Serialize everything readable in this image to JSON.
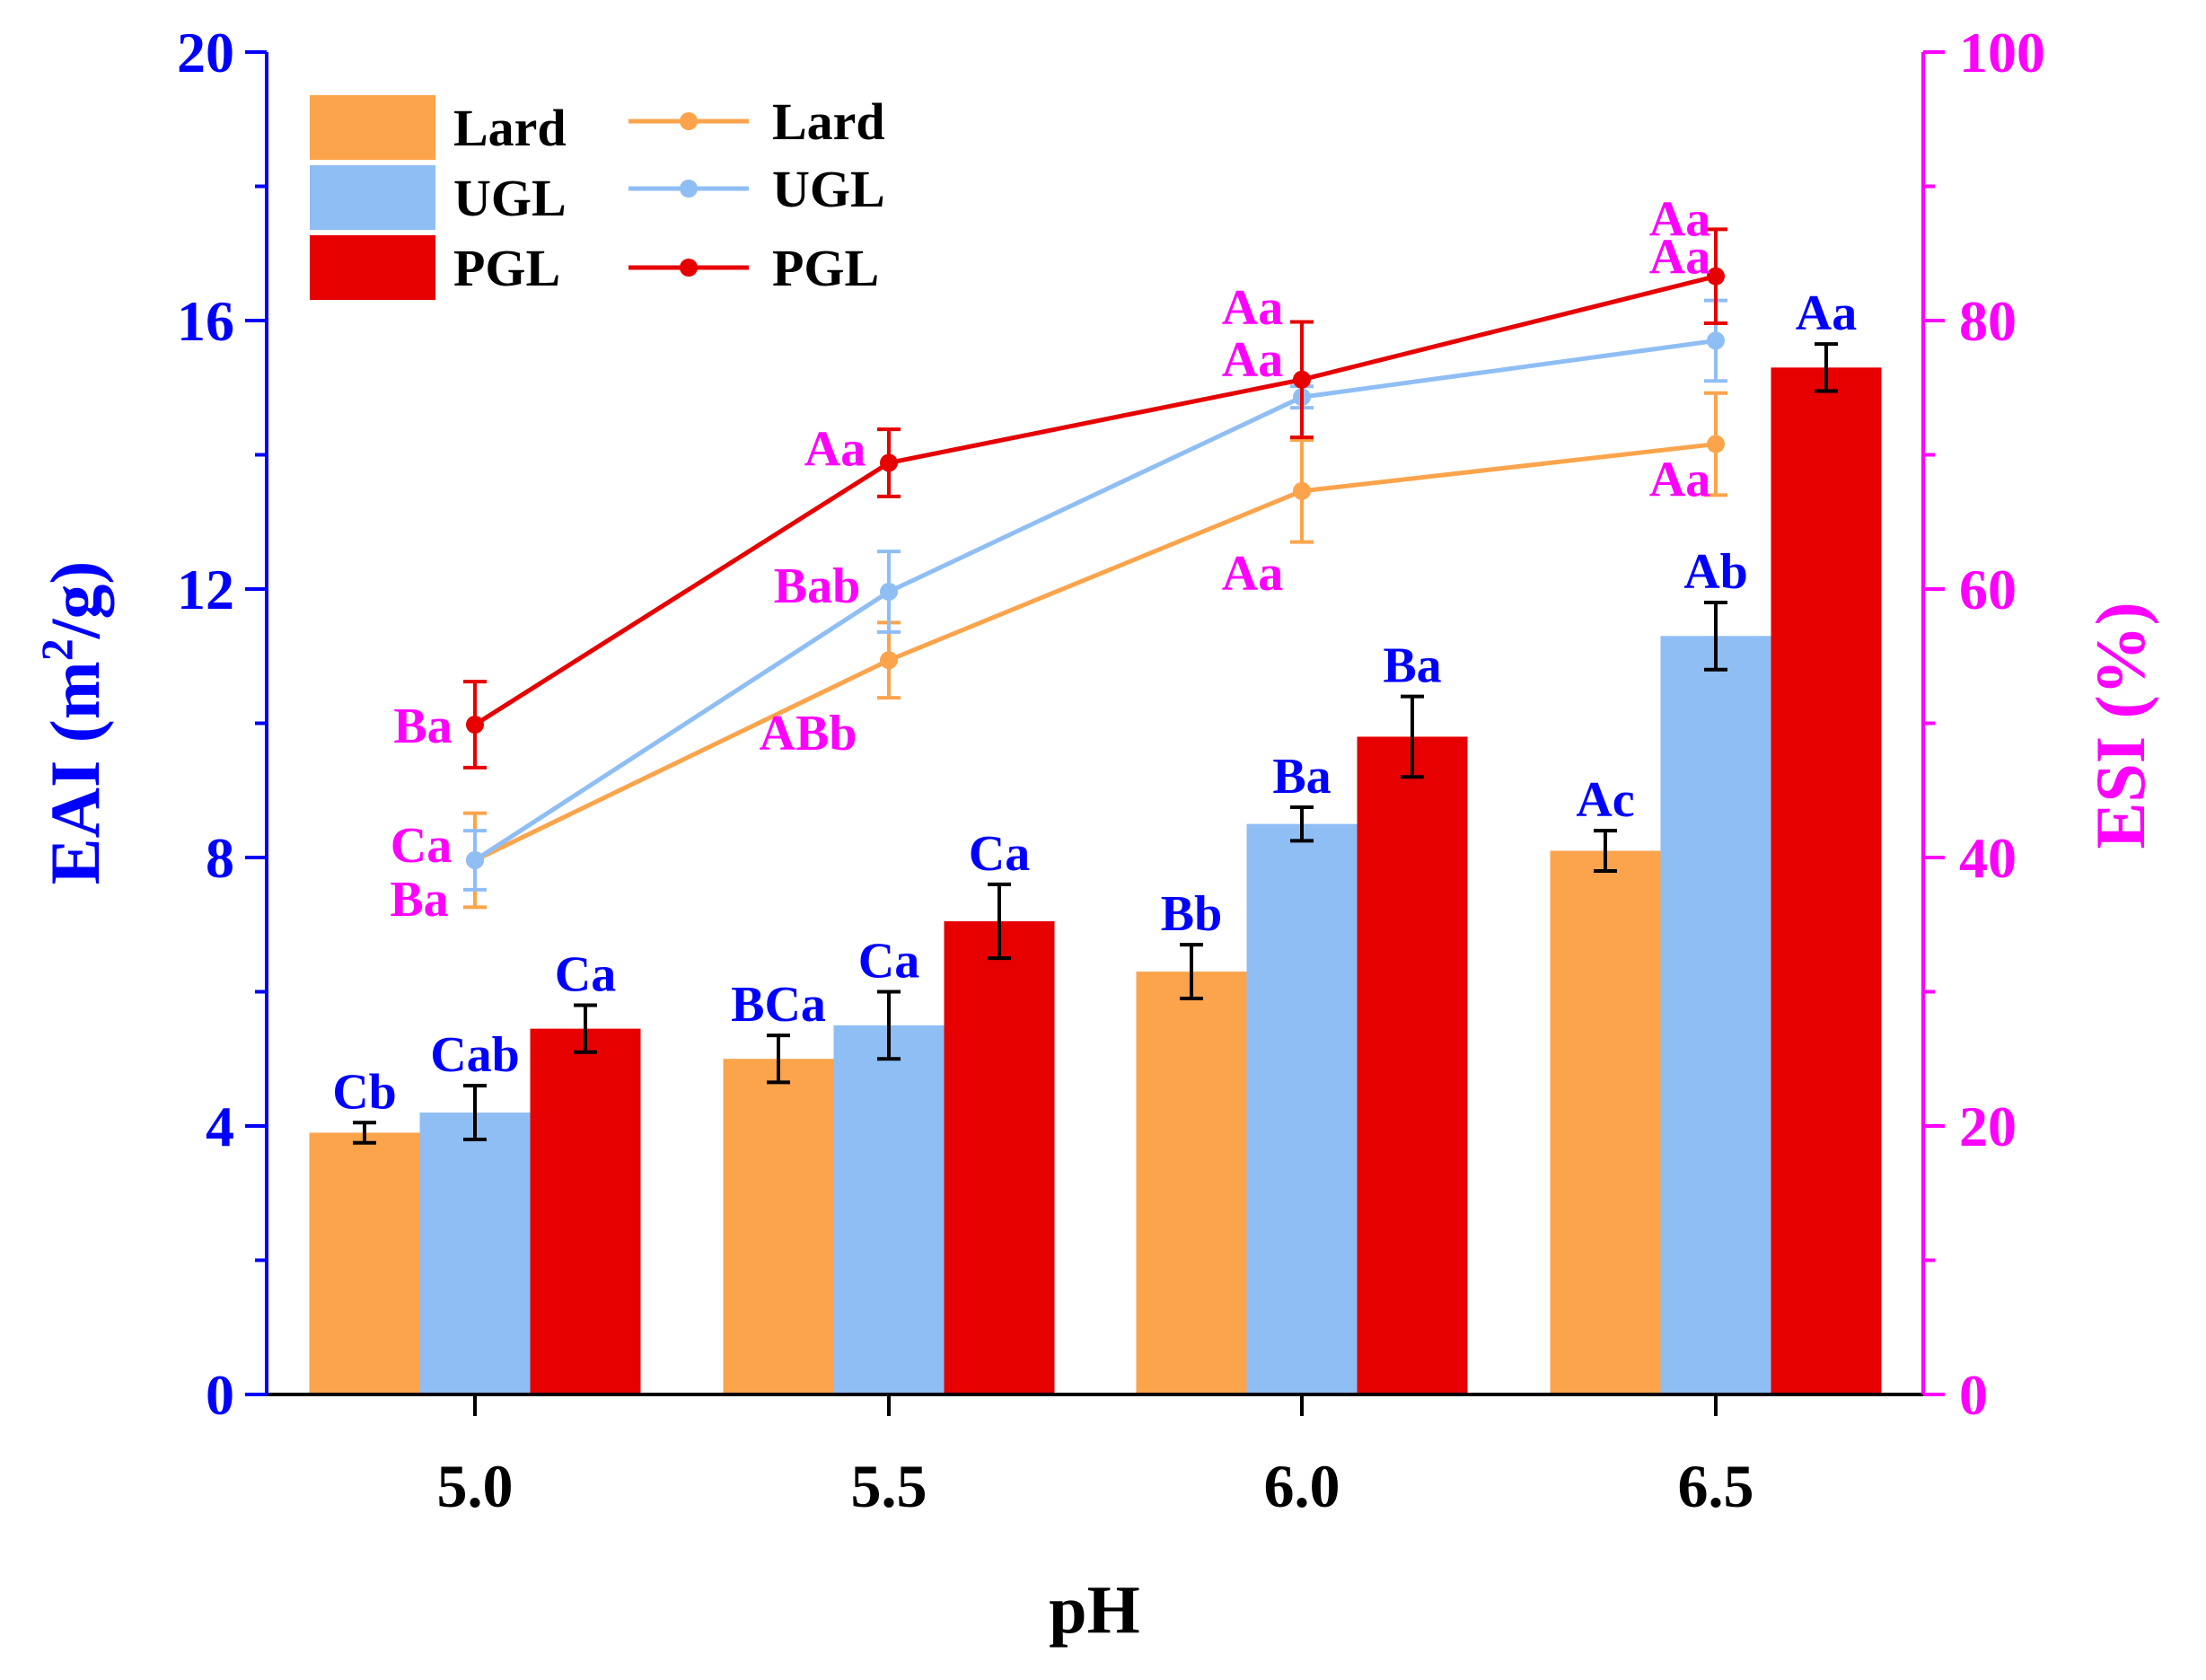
{
  "chart_data": {
    "type": "bar",
    "xlabel": "pH",
    "ylabel_left": "EAI (m²/g)",
    "ylabel_left_parts": {
      "base": "EAI (m",
      "sup": "2",
      "rest": "/g)"
    },
    "ylabel_right": "ESI (%)",
    "categories": [
      "5.0",
      "5.5",
      "6.0",
      "6.5"
    ],
    "ylim_left": [
      0,
      20
    ],
    "ylim_right": [
      0,
      100
    ],
    "yticks_left": [
      "0",
      "4",
      "8",
      "12",
      "16",
      "20"
    ],
    "yticks_right": [
      "0",
      "20",
      "40",
      "60",
      "80",
      "100"
    ],
    "bar_series": [
      {
        "name": "Lard",
        "color": "#FBA44C",
        "values": [
          3.9,
          5.0,
          6.3,
          8.1
        ],
        "errors": [
          0.15,
          0.35,
          0.4,
          0.3
        ],
        "labels": [
          "Cb",
          "BCa",
          "Bb",
          "Ac"
        ]
      },
      {
        "name": "UGL",
        "color": "#8FBEF5",
        "values": [
          4.2,
          5.5,
          8.5,
          11.3
        ],
        "errors": [
          0.4,
          0.5,
          0.25,
          0.5
        ],
        "labels": [
          "Cab",
          "Ca",
          "Ba",
          "Ab"
        ]
      },
      {
        "name": "PGL",
        "color": "#E60000",
        "values": [
          5.45,
          7.05,
          9.8,
          15.3
        ],
        "errors": [
          0.35,
          0.55,
          0.6,
          0.35
        ],
        "labels": [
          "Ca",
          "Ca",
          "Ba",
          "Aa"
        ]
      }
    ],
    "line_series": [
      {
        "name": "Lard",
        "color": "#FBA44C",
        "values": [
          39.8,
          54.7,
          67.3,
          70.8
        ],
        "errors": [
          3.5,
          2.8,
          3.8,
          3.8
        ],
        "labels": [
          "Ba",
          "ABb",
          "Aa",
          "Aa"
        ]
      },
      {
        "name": "UGL",
        "color": "#8FBEF5",
        "values": [
          39.8,
          59.8,
          74.3,
          78.5
        ],
        "errors": [
          2.2,
          3.0,
          0.8,
          3.0
        ],
        "labels": [
          "Ca",
          "Bab",
          "Aa",
          "Aa"
        ]
      },
      {
        "name": "PGL",
        "color": "#E60000",
        "values": [
          49.9,
          69.4,
          75.6,
          83.3
        ],
        "errors": [
          3.2,
          2.5,
          4.3,
          3.5
        ],
        "labels": [
          "Ba",
          "Aa",
          "Aa",
          "Aa"
        ]
      }
    ],
    "colors": {
      "left_axis": "#0000FF",
      "right_axis": "#FF00FF",
      "frame": "#000000",
      "error_bar": "#000000"
    },
    "legend_position": "top-left"
  }
}
